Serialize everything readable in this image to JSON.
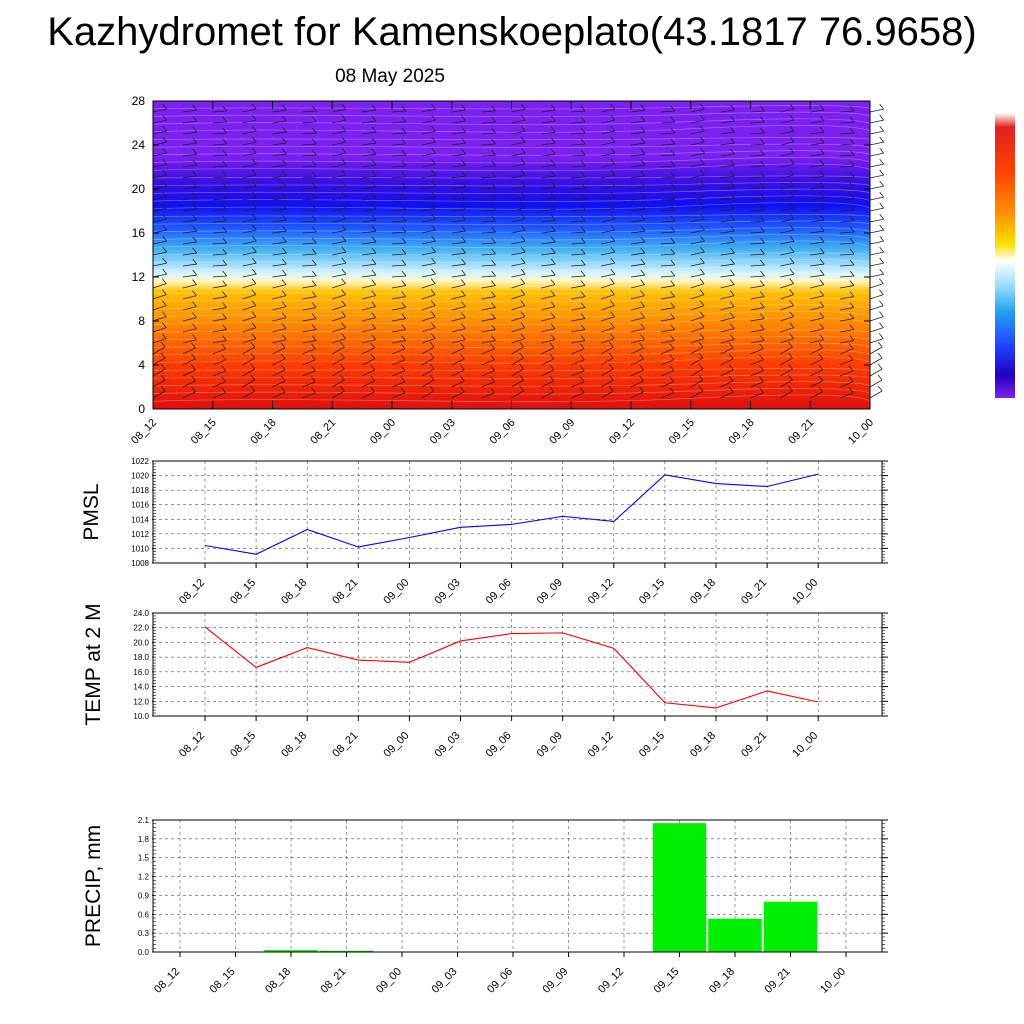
{
  "header": {
    "title": "Kazhydromet for Kamenskoeplato(43.1817 76.9658)",
    "date": "08 May 2025"
  },
  "chart_data": [
    {
      "type": "heatmap",
      "title": "",
      "x_ticks": [
        "08_12",
        "08_15",
        "08_18",
        "08_21",
        "09_00",
        "09_03",
        "09_06",
        "09_09",
        "09_12",
        "09_15",
        "09_18",
        "09_21",
        "10_00"
      ],
      "y_ticks": [
        "0",
        "4",
        "8",
        "12",
        "16",
        "20",
        "24",
        "28"
      ],
      "ylim": [
        0,
        28
      ],
      "colorbar": [
        "#e01010",
        "#ff4000",
        "#ff8000",
        "#ffb000",
        "#fff0a0",
        "#ffffff",
        "#a0e0ff",
        "#20a0f0",
        "#2040ff",
        "#3000d0",
        "#7020f0"
      ],
      "wind_barbs": true
    },
    {
      "type": "line",
      "ylabel": "PMSL",
      "x_ticks": [
        "08_12",
        "08_15",
        "08_18",
        "08_21",
        "09_00",
        "09_03",
        "09_06",
        "09_09",
        "09_12",
        "09_15",
        "09_18",
        "09_21",
        "10_00"
      ],
      "y_ticks": [
        "1022",
        "1020",
        "1018",
        "1016",
        "1014",
        "1012",
        "1010",
        "1008"
      ],
      "ylim": [
        1008,
        1022
      ],
      "values": [
        1010.4,
        1009.2,
        1012.6,
        1010.2,
        1011.5,
        1012.9,
        1013.3,
        1014.4,
        1013.7,
        1020.1,
        1018.9,
        1018.5,
        1020.2
      ],
      "color": "#0000ff"
    },
    {
      "type": "line",
      "ylabel": "TEMP at 2 M",
      "x_ticks": [
        "08_12",
        "08_15",
        "08_18",
        "08_21",
        "09_00",
        "09_03",
        "09_06",
        "09_09",
        "09_12",
        "09_15",
        "09_18",
        "09_21",
        "10_00"
      ],
      "y_ticks": [
        "24.0",
        "22.0",
        "20.0",
        "18.0",
        "16.0",
        "14.0",
        "12.0",
        "10.0"
      ],
      "ylim": [
        10,
        24
      ],
      "values": [
        22.1,
        16.6,
        19.3,
        17.6,
        17.3,
        20.2,
        21.2,
        21.3,
        19.2,
        11.8,
        11.1,
        13.4,
        11.9
      ],
      "color": "#ff0000"
    },
    {
      "type": "bar",
      "ylabel": "PRECIP, mm",
      "x_ticks": [
        "08_12",
        "08_15",
        "08_18",
        "08_21",
        "09_00",
        "09_03",
        "09_06",
        "09_09",
        "09_12",
        "09_15",
        "09_18",
        "09_21",
        "10_00"
      ],
      "y_ticks": [
        "2.1",
        "1.8",
        "1.5",
        "1.2",
        "0.9",
        "0.6",
        "0.3",
        "0.0"
      ],
      "ylim": [
        0,
        2.1
      ],
      "values": [
        0,
        0,
        0.03,
        0.02,
        0,
        0,
        0,
        0,
        0,
        2.05,
        0.53,
        0.8,
        0
      ],
      "color": "#00ee00"
    }
  ]
}
